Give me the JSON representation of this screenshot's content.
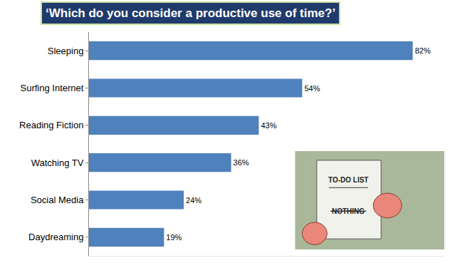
{
  "chart_data": {
    "type": "bar",
    "orientation": "horizontal",
    "title": "‘Which do you consider a productive use of time?’",
    "categories": [
      "Sleeping",
      "Surfing Internet",
      "Reading Fiction",
      "Watching TV",
      "Social Media",
      "Daydreaming"
    ],
    "values": [
      82,
      54,
      43,
      36,
      24,
      19
    ],
    "value_labels": [
      "82%",
      "54%",
      "43%",
      "36%",
      "24%",
      "19%"
    ],
    "color": "#4f81bd",
    "xlim": [
      0,
      90
    ],
    "grid": false,
    "data_labels": true,
    "tick_labels": "y",
    "annotations": [
      "TO-DO LIST",
      "NOTHING"
    ]
  }
}
